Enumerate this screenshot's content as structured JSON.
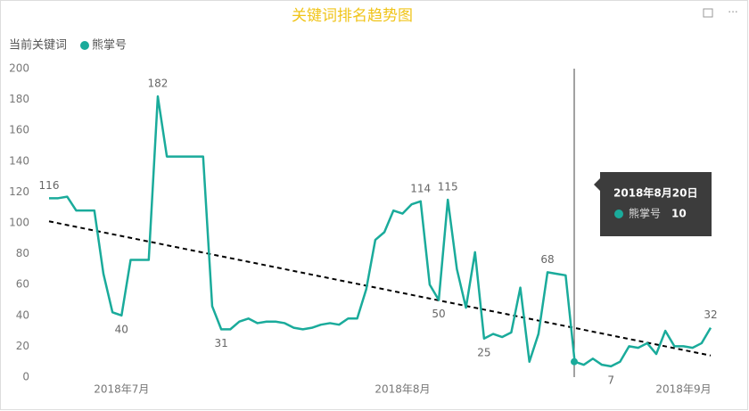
{
  "chart_data": {
    "type": "line",
    "title": "关键词排名趋势图",
    "legend_title": "当前关键词",
    "series": [
      {
        "name": "熊掌号",
        "color": "#1aab9b",
        "values": [
          116,
          116,
          117,
          108,
          108,
          108,
          67,
          42,
          40,
          76,
          76,
          76,
          182,
          143,
          143,
          143,
          143,
          143,
          46,
          31,
          31,
          36,
          38,
          35,
          36,
          36,
          35,
          32,
          31,
          32,
          34,
          35,
          34,
          38,
          38,
          57,
          89,
          94,
          108,
          106,
          112,
          114,
          60,
          50,
          115,
          70,
          45,
          81,
          25,
          28,
          26,
          29,
          58,
          10,
          28,
          68,
          67,
          66,
          10,
          8,
          12,
          8,
          7,
          10,
          20,
          19,
          22,
          15,
          30,
          20,
          20,
          19,
          22,
          32
        ],
        "value_labels": [
          "116",
          null,
          null,
          null,
          null,
          null,
          null,
          null,
          "40",
          null,
          null,
          null,
          "182",
          null,
          null,
          null,
          null,
          null,
          null,
          "31",
          null,
          null,
          null,
          null,
          null,
          null,
          null,
          null,
          null,
          null,
          null,
          null,
          null,
          null,
          null,
          null,
          null,
          null,
          null,
          null,
          null,
          "114",
          null,
          "50",
          "115",
          null,
          null,
          null,
          "25",
          null,
          null,
          null,
          null,
          null,
          null,
          "68",
          null,
          null,
          null,
          null,
          null,
          null,
          "7",
          null,
          null,
          null,
          null,
          null,
          null,
          null,
          null,
          null,
          null,
          "32"
        ]
      }
    ],
    "trendline": {
      "start": 101,
      "end": 14
    },
    "xlim": [
      0,
      73
    ],
    "xticks": [
      {
        "value": 8,
        "label": "2018年7月"
      },
      {
        "value": 39,
        "label": "2018年8月"
      },
      {
        "value": 70,
        "label": "2018年9月"
      }
    ],
    "ylim": [
      0,
      200
    ],
    "yticks": [
      0,
      20,
      40,
      60,
      80,
      100,
      120,
      140,
      160,
      180,
      200
    ],
    "grid": false,
    "tooltip": {
      "title": "2018年8月20日",
      "series": "熊掌号",
      "value": 10
    }
  }
}
